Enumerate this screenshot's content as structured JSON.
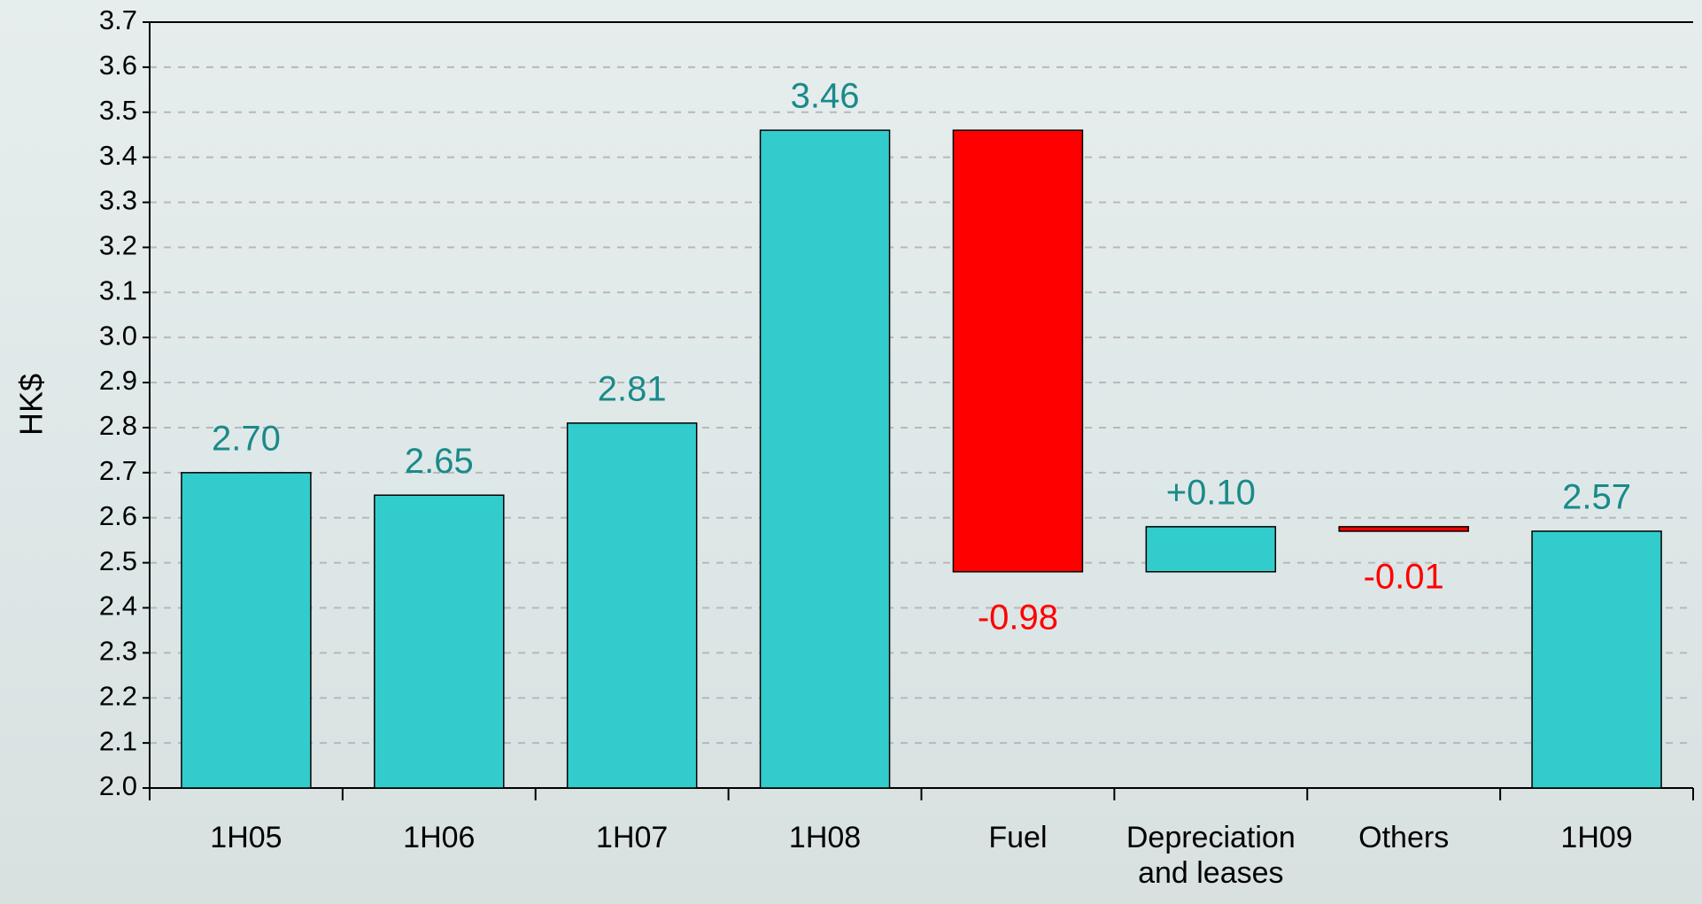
{
  "chart_data": {
    "type": "waterfall",
    "y_label": "HK$",
    "categories": [
      "1H05",
      "1H06",
      "1H07",
      "1H08",
      "Fuel",
      "Depreciation and leases",
      "Others",
      "1H09"
    ],
    "values": [
      2.7,
      2.65,
      2.81,
      3.46,
      -0.98,
      0.1,
      -0.01,
      2.57
    ],
    "value_labels": [
      "2.70",
      "2.65",
      "2.81",
      "3.46",
      "-0.98",
      "+0.10",
      "-0.01",
      "2.57"
    ],
    "measure": [
      "absolute",
      "absolute",
      "absolute",
      "absolute",
      "relative",
      "relative",
      "relative",
      "absolute"
    ],
    "colors": [
      "#33cccc",
      "#33cccc",
      "#33cccc",
      "#33cccc",
      "#ff0000",
      "#33cccc",
      "#ff0000",
      "#33cccc"
    ],
    "label_colors": [
      "#1a8a8a",
      "#1a8a8a",
      "#1a8a8a",
      "#1a8a8a",
      "#ff0000",
      "#1a8a8a",
      "#ff0000",
      "#1a8a8a"
    ],
    "ylim": [
      2.0,
      3.7
    ],
    "yticks": [
      {
        "value": 2.0,
        "label": "2.0"
      },
      2.1,
      2.2,
      2.3,
      2.4,
      2.5,
      2.6,
      2.7,
      2.8,
      2.9,
      {
        "value": 3.0,
        "label": "3.0"
      },
      3.1,
      3.2,
      3.3,
      3.4,
      3.5,
      3.6,
      3.7
    ],
    "grid": true
  }
}
